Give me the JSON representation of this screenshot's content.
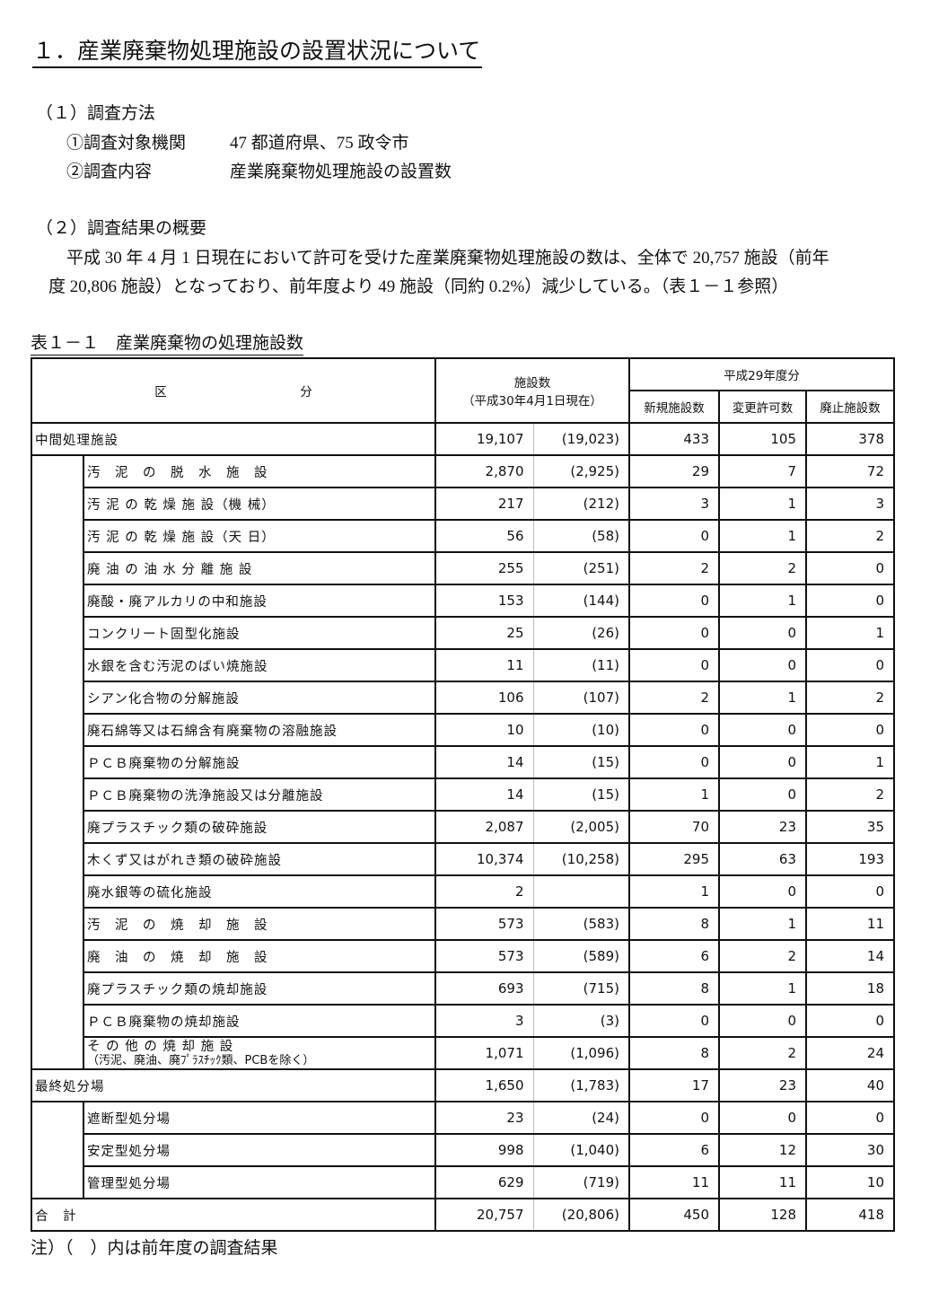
{
  "title": "１．産業廃棄物処理施設の設置状況について",
  "section1": {
    "heading": "（１）調査方法",
    "items": [
      {
        "label": "①調査対象機関",
        "value": "47 都道府県、75 政令市"
      },
      {
        "label": "②調査内容",
        "value": "産業廃棄物処理施設の設置数"
      }
    ]
  },
  "section2": {
    "heading": "（２）調査結果の概要",
    "line1": "平成 30 年 4 月 1 日現在において許可を受けた産業廃棄物処理施設の数は、全体で 20,757 施設（前年",
    "line2": "度 20,806 施設）となっており、前年度より 49 施設（同約 0.2%）減少している。（表１－１参照）"
  },
  "table": {
    "caption": "表１－１　産業廃棄物の処理施設数",
    "headers": {
      "category_a": "区",
      "category_b": "分",
      "count": "施設数",
      "count_sub": "（平成30年4月1日現在）",
      "fy": "平成29年度分",
      "new": "新規施設数",
      "changed": "変更許可数",
      "abolished": "廃止施設数"
    },
    "rows": [
      {
        "level": 0,
        "label": "中間処理施設",
        "count": "19,107",
        "prev": "(19,023)",
        "new": "433",
        "changed": "105",
        "abolished": "378"
      },
      {
        "level": 1,
        "label": "汚　泥　の　脱　水　施　設",
        "count": "2,870",
        "prev": "(2,925)",
        "new": "29",
        "changed": "7",
        "abolished": "72"
      },
      {
        "level": 1,
        "label": "汚 泥 の 乾 燥 施 設（機 械）",
        "count": "217",
        "prev": "(212)",
        "new": "3",
        "changed": "1",
        "abolished": "3"
      },
      {
        "level": 1,
        "label": "汚 泥 の 乾 燥 施 設（天 日）",
        "count": "56",
        "prev": "(58)",
        "new": "0",
        "changed": "1",
        "abolished": "2"
      },
      {
        "level": 1,
        "label": "廃 油 の 油 水 分 離 施 設",
        "count": "255",
        "prev": "(251)",
        "new": "2",
        "changed": "2",
        "abolished": "0"
      },
      {
        "level": 1,
        "label": "廃酸・廃アルカリの中和施設",
        "count": "153",
        "prev": "(144)",
        "new": "0",
        "changed": "1",
        "abolished": "0"
      },
      {
        "level": 1,
        "label": "コンクリート固型化施設",
        "count": "25",
        "prev": "(26)",
        "new": "0",
        "changed": "0",
        "abolished": "1"
      },
      {
        "level": 1,
        "label": "水銀を含む汚泥のばい焼施設",
        "count": "11",
        "prev": "(11)",
        "new": "0",
        "changed": "0",
        "abolished": "0"
      },
      {
        "level": 1,
        "label": "シアン化合物の分解施設",
        "count": "106",
        "prev": "(107)",
        "new": "2",
        "changed": "1",
        "abolished": "2"
      },
      {
        "level": 1,
        "label": "廃石綿等又は石綿含有廃棄物の溶融施設",
        "count": "10",
        "prev": "(10)",
        "new": "0",
        "changed": "0",
        "abolished": "0"
      },
      {
        "level": 1,
        "label": "ＰＣＢ廃棄物の分解施設",
        "count": "14",
        "prev": "(15)",
        "new": "0",
        "changed": "0",
        "abolished": "1"
      },
      {
        "level": 1,
        "label": "ＰＣＢ廃棄物の洗浄施設又は分離施設",
        "count": "14",
        "prev": "(15)",
        "new": "1",
        "changed": "0",
        "abolished": "2"
      },
      {
        "level": 1,
        "label": "廃プラスチック類の破砕施設",
        "count": "2,087",
        "prev": "(2,005)",
        "new": "70",
        "changed": "23",
        "abolished": "35"
      },
      {
        "level": 1,
        "label": "木くず又はがれき類の破砕施設",
        "count": "10,374",
        "prev": "(10,258)",
        "new": "295",
        "changed": "63",
        "abolished": "193"
      },
      {
        "level": 1,
        "label": "廃水銀等の硫化施設",
        "count": "2",
        "prev": "",
        "new": "1",
        "changed": "0",
        "abolished": "0"
      },
      {
        "level": 1,
        "label": "汚　泥　の　焼　却　施　設",
        "count": "573",
        "prev": "(583)",
        "new": "8",
        "changed": "1",
        "abolished": "11"
      },
      {
        "level": 1,
        "label": "廃　油　の　焼　却　施　設",
        "count": "573",
        "prev": "(589)",
        "new": "6",
        "changed": "2",
        "abolished": "14"
      },
      {
        "level": 1,
        "label": "廃プラスチック類の焼却施設",
        "count": "693",
        "prev": "(715)",
        "new": "8",
        "changed": "1",
        "abolished": "18"
      },
      {
        "level": 1,
        "label": "ＰＣＢ廃棄物の焼却施設",
        "count": "3",
        "prev": "(3)",
        "new": "0",
        "changed": "0",
        "abolished": "0"
      },
      {
        "level": 1,
        "label": "そ の 他 の 焼 却 施 設",
        "sublabel": "（汚泥、廃油、廃ﾌﾟﾗｽﾁｯｸ類、PCBを除く）",
        "count": "1,071",
        "prev": "(1,096)",
        "new": "8",
        "changed": "2",
        "abolished": "24"
      },
      {
        "level": 0,
        "label": "最終処分場",
        "count": "1,650",
        "prev": "(1,783)",
        "new": "17",
        "changed": "23",
        "abolished": "40"
      },
      {
        "level": 1,
        "label": "遮断型処分場",
        "count": "23",
        "prev": "(24)",
        "new": "0",
        "changed": "0",
        "abolished": "0"
      },
      {
        "level": 1,
        "label": "安定型処分場",
        "count": "998",
        "prev": "(1,040)",
        "new": "6",
        "changed": "12",
        "abolished": "30"
      },
      {
        "level": 1,
        "label": "管理型処分場",
        "count": "629",
        "prev": "(719)",
        "new": "11",
        "changed": "11",
        "abolished": "10"
      },
      {
        "level": 0,
        "label": "合　計",
        "count": "20,757",
        "prev": "(20,806)",
        "new": "450",
        "changed": "128",
        "abolished": "418"
      }
    ],
    "note": "注）（　）内は前年度の調査結果"
  }
}
